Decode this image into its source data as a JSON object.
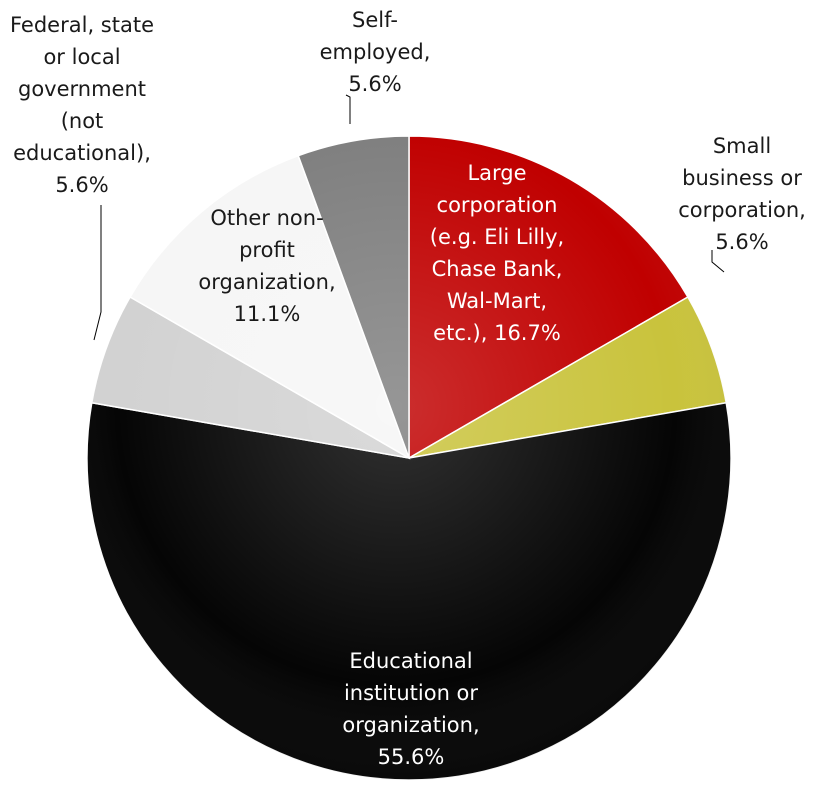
{
  "chart_data": {
    "type": "pie",
    "title": "",
    "slices": [
      {
        "label": "Large corporation (e.g. Eli Lilly, Chase Bank, Wal-Mart, etc.), 16.7%",
        "lines": [
          "Large",
          "corporation",
          "(e.g. Eli Lilly,",
          "Chase Bank,",
          "Wal-Mart,",
          "etc.), 16.7%"
        ],
        "value": 16.7,
        "color": "#c00000",
        "label_color": "#ffffff"
      },
      {
        "label": "Small business or corporation, 5.6%",
        "lines": [
          "Small",
          "business or",
          "corporation,",
          "5.6%"
        ],
        "value": 5.6,
        "color": "#c9c33c",
        "label_color": "#1a1a1a"
      },
      {
        "label": "Educational institution or organization, 55.6%",
        "lines": [
          "Educational",
          "institution or",
          "organization,",
          "55.6%"
        ],
        "value": 55.6,
        "color": "#050505",
        "label_color": "#ffffff"
      },
      {
        "label": "Federal, state or local government (not educational), 5.6%",
        "lines": [
          "Federal, state",
          "or local",
          "government",
          "(not",
          "educational),",
          "5.6%"
        ],
        "value": 5.6,
        "color": "#d2d2d2",
        "label_color": "#1a1a1a"
      },
      {
        "label": "Other non-profit organization, 11.1%",
        "lines": [
          "Other non-",
          "profit",
          "organization,",
          "11.1%"
        ],
        "value": 11.1,
        "color": "#f6f6f6",
        "label_color": "#1a1a1a"
      },
      {
        "label": "Self-employed, 5.6%",
        "lines": [
          "Self-",
          "employed,",
          "5.6%"
        ],
        "value": 5.6,
        "color": "#7f7f7f",
        "label_color": "#1a1a1a"
      }
    ]
  }
}
